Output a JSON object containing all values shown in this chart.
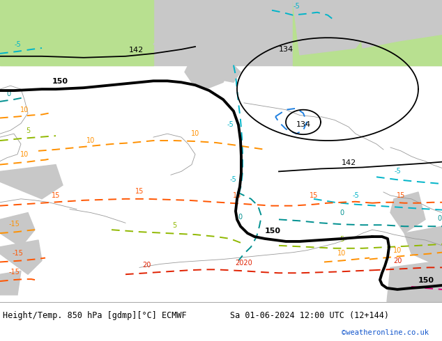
{
  "title_left": "Height/Temp. 850 hPa [gdmp][°C] ECMWF",
  "title_right": "Sa 01-06-2024 12:00 UTC (12+144)",
  "credit": "©weatheronline.co.uk",
  "map_bg": "#b8e090",
  "sea_gray": "#c8c8c8",
  "land_light": "#c8e8a0",
  "footer_bg": "#ffffff",
  "title_color": "#000000",
  "credit_color": "#1155cc",
  "title_fontsize": 8.5,
  "credit_fontsize": 7.5
}
